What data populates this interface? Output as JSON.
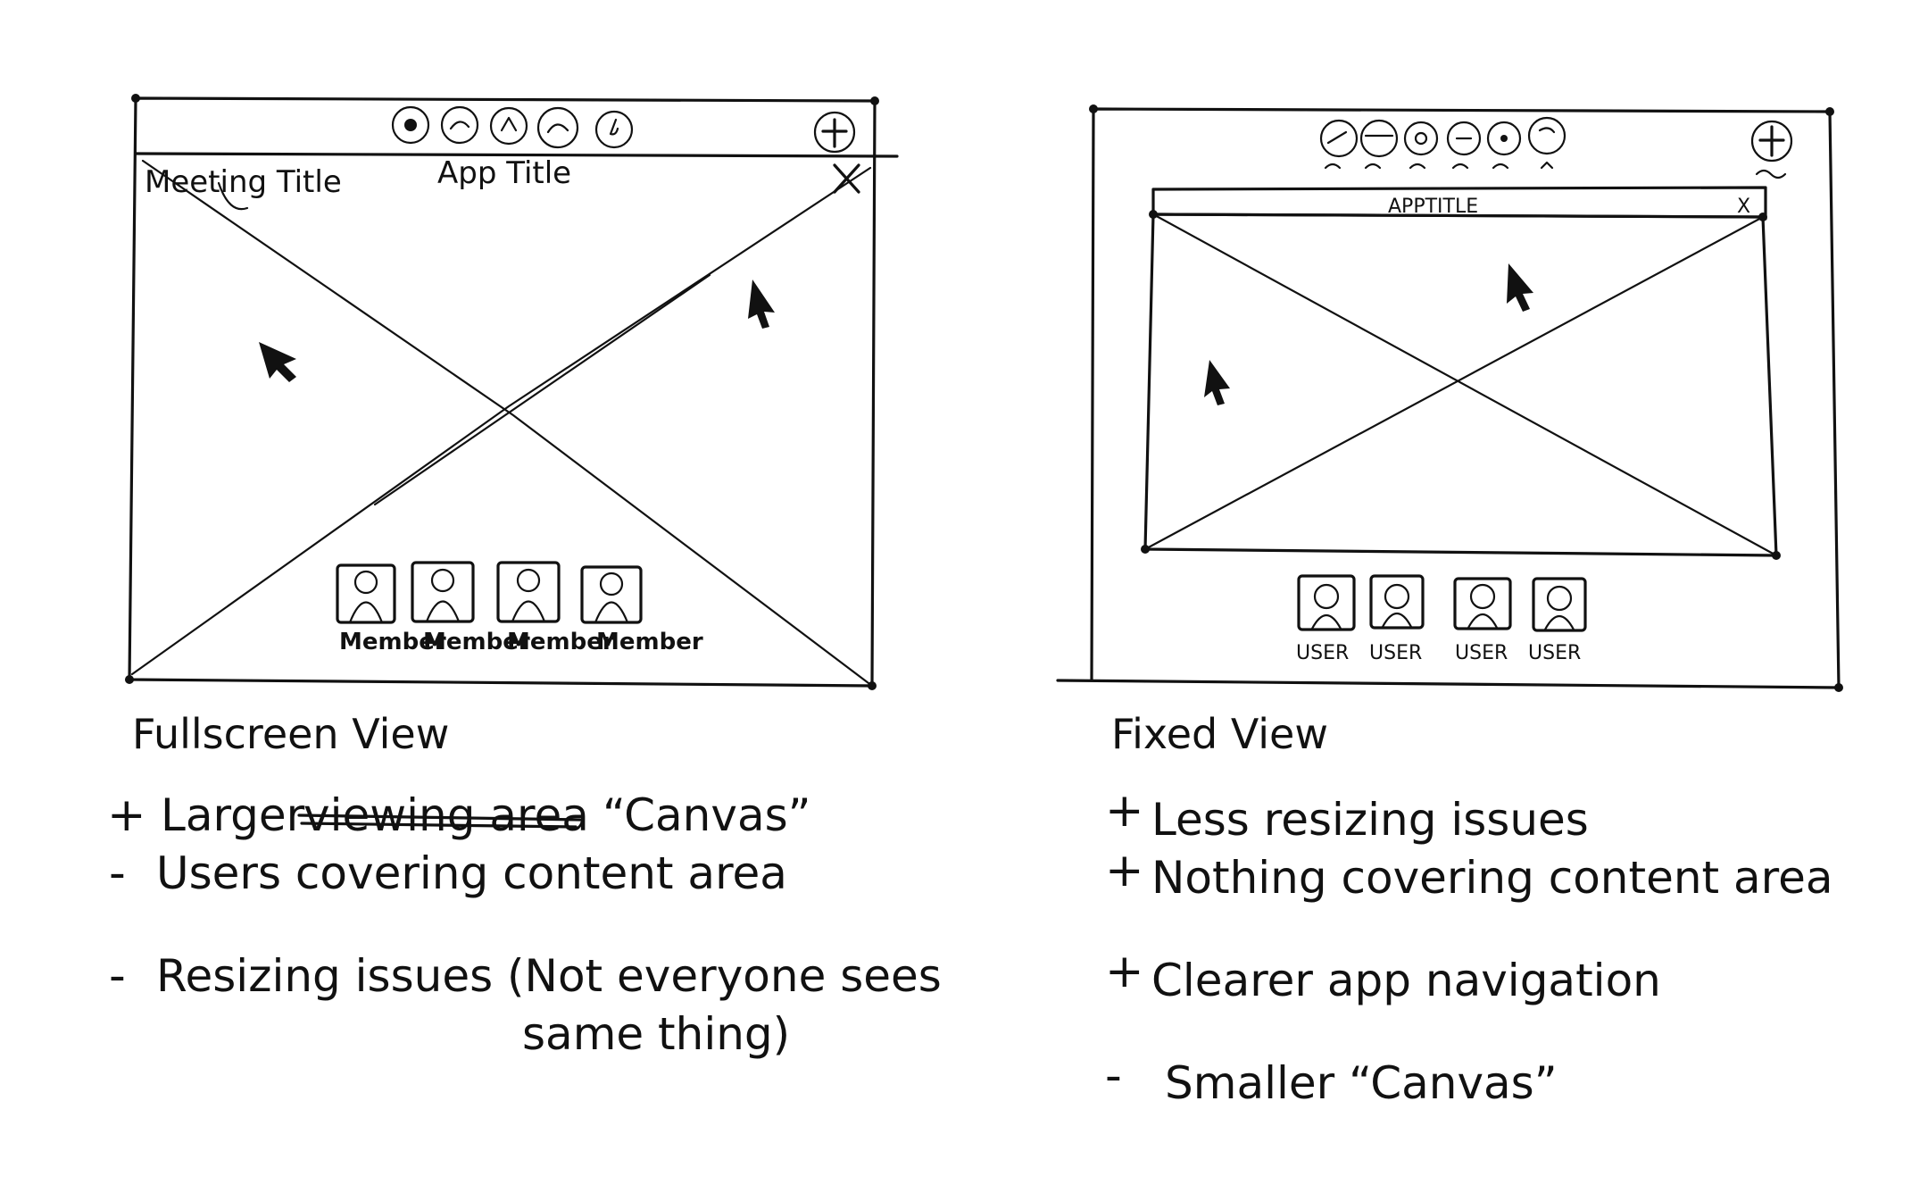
{
  "fullscreen": {
    "window_label_meeting": "Meeting Title",
    "window_label_app": "App Title",
    "participants": [
      "Member",
      "Member",
      "Member",
      "Member"
    ],
    "heading": "Fullscreen View",
    "notes": [
      {
        "sign": "+",
        "pre": "Larger",
        "struck": "viewing area",
        "post": "“Canvas”"
      },
      {
        "sign": "-",
        "text": "Users covering content area"
      },
      {
        "sign": "-",
        "text": "Resizing issues (Not everyone sees"
      },
      {
        "sign": "",
        "text": "same thing)"
      }
    ]
  },
  "fixed": {
    "app_title": "APPTITLE",
    "close_label": "X",
    "participants": [
      "USER",
      "USER",
      "USER",
      "USER"
    ],
    "heading": "Fixed View",
    "notes": [
      {
        "sign": "+",
        "text": "Less resizing issues"
      },
      {
        "sign": "+",
        "text": "Nothing covering content area"
      },
      {
        "sign": "+",
        "text": "Clearer app navigation"
      },
      {
        "sign": "-",
        "text": "Smaller “Canvas”"
      }
    ]
  }
}
